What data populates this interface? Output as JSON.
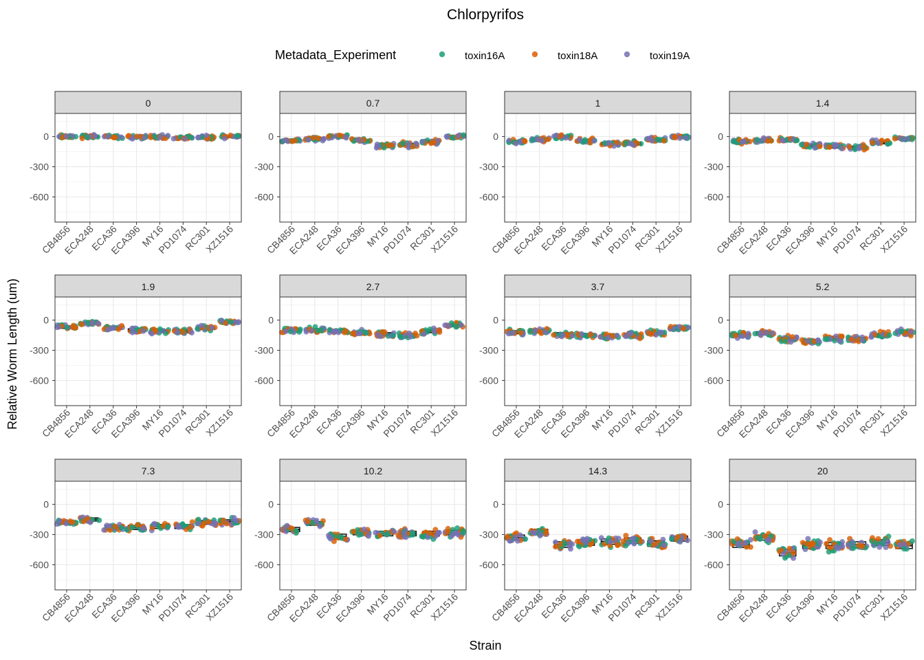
{
  "chart_data": {
    "type": "scatter",
    "title": "Chlorpyrifos",
    "xlabel": "Strain",
    "ylabel": "Relative Worm Length (um)",
    "legend": {
      "title": "Metadata_Experiment",
      "position": "top",
      "entries": [
        {
          "name": "toxin16A",
          "color": "#1B9E77"
        },
        {
          "name": "toxin18A",
          "color": "#D95F02"
        },
        {
          "name": "toxin19A",
          "color": "#7570B3"
        }
      ]
    },
    "ylim": [
      -850,
      230
    ],
    "y_ticks": [
      "0",
      "-300",
      "-600"
    ],
    "y_tick_values": [
      0,
      -300,
      -600
    ],
    "grid": true,
    "facet_by": "concentration",
    "categories": [
      "CB4856",
      "ECA248",
      "ECA36",
      "ECA396",
      "MY16",
      "PD1074",
      "RC301",
      "XZ1516"
    ],
    "panels": [
      {
        "label": "0",
        "medians": [
          0,
          0,
          -5,
          -5,
          0,
          -10,
          -10,
          0
        ]
      },
      {
        "label": "0.7",
        "medians": [
          -40,
          -20,
          0,
          -40,
          -90,
          -80,
          -50,
          0
        ]
      },
      {
        "label": "1",
        "medians": [
          -50,
          -30,
          0,
          -40,
          -70,
          -70,
          -30,
          0
        ]
      },
      {
        "label": "1.4",
        "medians": [
          -50,
          -40,
          -30,
          -90,
          -100,
          -110,
          -60,
          -20
        ]
      },
      {
        "label": "1.9",
        "medians": [
          -70,
          -30,
          -80,
          -100,
          -110,
          -110,
          -80,
          -20
        ]
      },
      {
        "label": "2.7",
        "medians": [
          -100,
          -100,
          -110,
          -130,
          -140,
          -150,
          -110,
          -50
        ]
      },
      {
        "label": "3.7",
        "medians": [
          -120,
          -110,
          -140,
          -150,
          -160,
          -150,
          -130,
          -80
        ]
      },
      {
        "label": "5.2",
        "medians": [
          -150,
          -130,
          -190,
          -210,
          -180,
          -190,
          -150,
          -120
        ]
      },
      {
        "label": "7.3",
        "medians": [
          -180,
          -150,
          -230,
          -230,
          -220,
          -220,
          -180,
          -170
        ]
      },
      {
        "label": "10.2",
        "medians": [
          -250,
          -190,
          -320,
          -280,
          -290,
          -290,
          -290,
          -280
        ]
      },
      {
        "label": "14.3",
        "medians": [
          -330,
          -270,
          -400,
          -380,
          -370,
          -360,
          -390,
          -340
        ]
      },
      {
        "label": "20",
        "medians": [
          -400,
          -330,
          -480,
          -410,
          -410,
          -400,
          -380,
          -410
        ]
      }
    ]
  }
}
